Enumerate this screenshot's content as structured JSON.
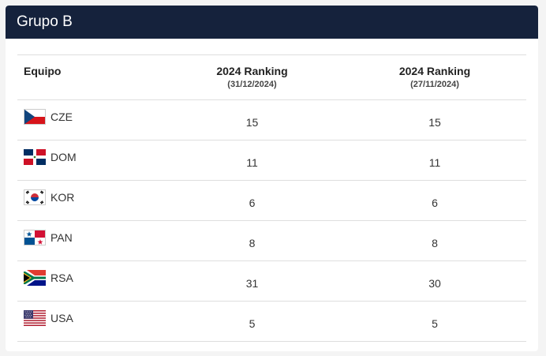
{
  "group_title": "Grupo B",
  "columns": {
    "team": "Equipo",
    "rank1_title": "2024 Ranking",
    "rank1_date": "(31/12/2024)",
    "rank2_title": "2024 Ranking",
    "rank2_date": "(27/11/2024)"
  },
  "rows": [
    {
      "code": "CZE",
      "flag": "czech-flag-icon",
      "rank1": "15",
      "rank2": "15"
    },
    {
      "code": "DOM",
      "flag": "dominican-flag-icon",
      "rank1": "11",
      "rank2": "11"
    },
    {
      "code": "KOR",
      "flag": "korean-flag-icon",
      "rank1": "6",
      "rank2": "6"
    },
    {
      "code": "PAN",
      "flag": "panama-flag-icon",
      "rank1": "8",
      "rank2": "8"
    },
    {
      "code": "RSA",
      "flag": "south-africa-flag-icon",
      "rank1": "31",
      "rank2": "30"
    },
    {
      "code": "USA",
      "flag": "usa-flag-icon",
      "rank1": "5",
      "rank2": "5"
    }
  ]
}
